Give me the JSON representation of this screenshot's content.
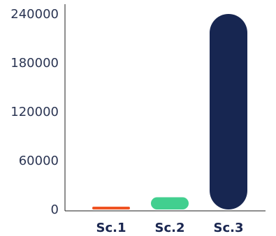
{
  "chart_data": {
    "type": "bar",
    "categories": [
      "Sc.1",
      "Sc.2",
      "Sc.3"
    ],
    "values": [
      2000,
      15000,
      240000
    ],
    "colors": [
      "#ef5322",
      "#42cf8f",
      "#172651"
    ],
    "yticks": [
      "0",
      "60000",
      "120000",
      "180000",
      "240000"
    ],
    "ytick_values": [
      0,
      60000,
      120000,
      180000,
      240000
    ],
    "ylim": [
      0,
      240000
    ],
    "grid": false,
    "legend": "none",
    "title": "",
    "xlabel": "",
    "ylabel": ""
  }
}
